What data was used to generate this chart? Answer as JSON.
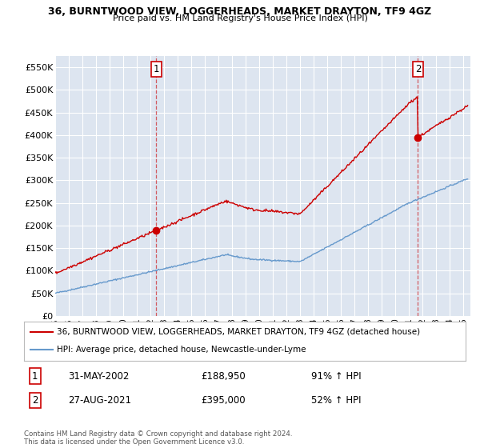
{
  "title_line1": "36, BURNTWOOD VIEW, LOGGERHEADS, MARKET DRAYTON, TF9 4GZ",
  "title_line2": "Price paid vs. HM Land Registry's House Price Index (HPI)",
  "ylabel_ticks": [
    "£0",
    "£50K",
    "£100K",
    "£150K",
    "£200K",
    "£250K",
    "£300K",
    "£350K",
    "£400K",
    "£450K",
    "£500K",
    "£550K"
  ],
  "ytick_values": [
    0,
    50000,
    100000,
    150000,
    200000,
    250000,
    300000,
    350000,
    400000,
    450000,
    500000,
    550000
  ],
  "ylim": [
    0,
    575000
  ],
  "xlim_start": 1995.0,
  "xlim_end": 2025.5,
  "x_ticks": [
    1995,
    1996,
    1997,
    1998,
    1999,
    2000,
    2001,
    2002,
    2003,
    2004,
    2005,
    2006,
    2007,
    2008,
    2009,
    2010,
    2011,
    2012,
    2013,
    2014,
    2015,
    2016,
    2017,
    2018,
    2019,
    2020,
    2021,
    2022,
    2023,
    2024,
    2025
  ],
  "hpi_color": "#6699cc",
  "price_color": "#cc0000",
  "background_color": "#dde5f0",
  "grid_color": "#ffffff",
  "marker1_x": 2002.417,
  "marker1_y": 188950,
  "marker2_x": 2021.65,
  "marker2_y": 395000,
  "marker1_label": "1",
  "marker2_label": "2",
  "legend_line1": "36, BURNTWOOD VIEW, LOGGERHEADS, MARKET DRAYTON, TF9 4GZ (detached house)",
  "legend_line2": "HPI: Average price, detached house, Newcastle-under-Lyme",
  "annotation1_date": "31-MAY-2002",
  "annotation1_price": "£188,950",
  "annotation1_hpi": "91% ↑ HPI",
  "annotation2_date": "27-AUG-2021",
  "annotation2_price": "£395,000",
  "annotation2_hpi": "52% ↑ HPI",
  "footer": "Contains HM Land Registry data © Crown copyright and database right 2024.\nThis data is licensed under the Open Government Licence v3.0."
}
